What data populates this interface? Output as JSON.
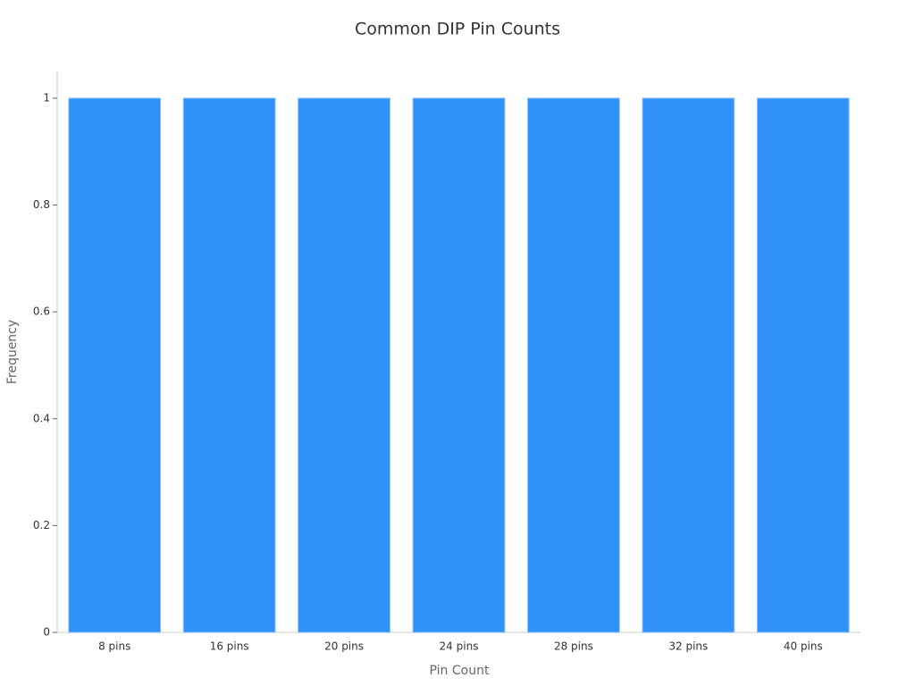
{
  "chart_data": {
    "type": "bar",
    "title": "Common DIP Pin Counts",
    "x_label": "Pin Count",
    "y_label": "Frequency",
    "categories": [
      "8 pins",
      "16 pins",
      "20 pins",
      "24 pins",
      "28 pins",
      "32 pins",
      "40 pins"
    ],
    "values": [
      1,
      1,
      1,
      1,
      1,
      1,
      1
    ],
    "color": "#3091f8",
    "ylim": [
      0,
      1.05
    ],
    "yticks": [
      0,
      0.2,
      0.4,
      0.6,
      0.8,
      1
    ],
    "grid": false
  }
}
